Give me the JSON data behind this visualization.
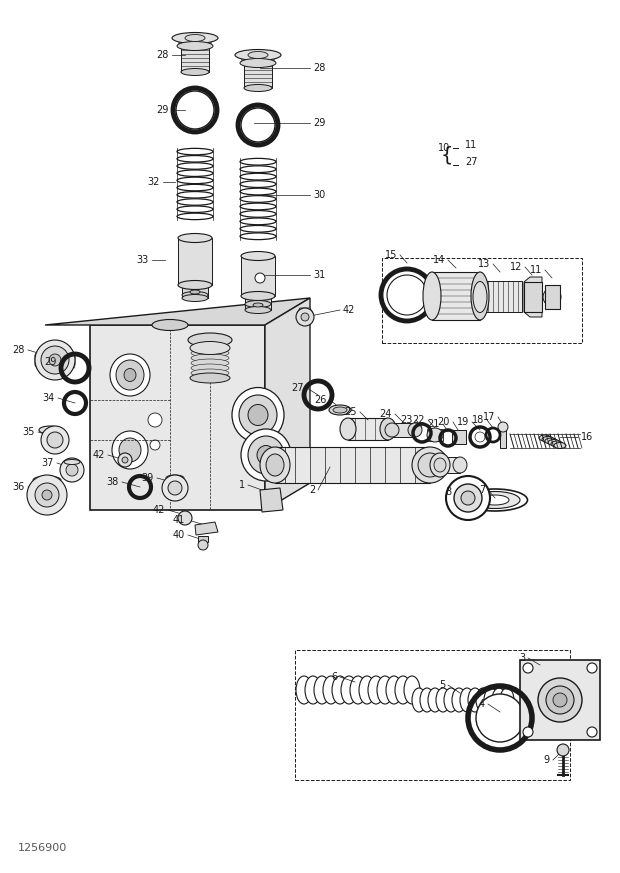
{
  "bg_color": "#ffffff",
  "line_color": "#1a1a1a",
  "figure_width": 6.2,
  "figure_height": 8.73,
  "dpi": 100,
  "watermark": "1256900",
  "fs": 7.0
}
